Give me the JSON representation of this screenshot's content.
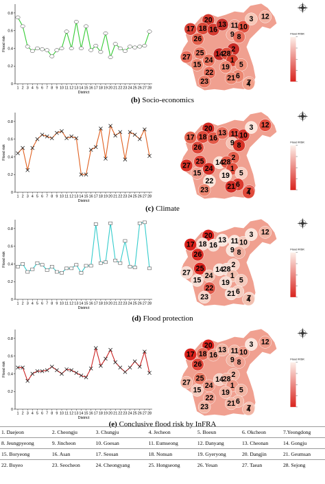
{
  "panels": [
    {
      "caption_letter": "(b)",
      "caption_text": "Socio-economics",
      "chart_color": "#33cc33",
      "marker": "circle",
      "map_top_label": "Flood RISK"
    },
    {
      "caption_letter": "(c)",
      "caption_text": "Climate",
      "chart_color": "#e06020",
      "marker": "x",
      "map_top_label": "Flood RISK"
    },
    {
      "caption_letter": "(d)",
      "caption_text": "Flood protection",
      "chart_color": "#33cccc",
      "marker": "square",
      "map_top_label": "Flood RISK"
    },
    {
      "caption_letter": "(e)",
      "caption_text": "Conclusive flood risk by InFRA",
      "chart_color": "#cc2222",
      "marker": "x",
      "map_top_label": "Flood RISK"
    }
  ],
  "chart_data": [
    {
      "type": "line",
      "xlabel": "District",
      "ylabel": "Flood risk",
      "x": [
        1,
        2,
        3,
        4,
        5,
        6,
        7,
        8,
        9,
        10,
        11,
        12,
        13,
        14,
        15,
        16,
        17,
        18,
        19,
        20,
        21,
        22,
        23,
        24,
        25,
        26,
        27,
        28
      ],
      "yticks": [
        "0",
        "0.2",
        "0.4",
        "0.6",
        "0.8"
      ],
      "ylim": [
        0,
        0.9
      ],
      "series": [
        {
          "values": [
            0.75,
            0.65,
            0.42,
            0.37,
            0.4,
            0.39,
            0.38,
            0.31,
            0.38,
            0.4,
            0.59,
            0.4,
            0.7,
            0.4,
            0.65,
            0.38,
            0.43,
            0.36,
            0.57,
            0.3,
            0.45,
            0.4,
            0.37,
            0.42,
            0.41,
            0.42,
            0.43,
            0.59
          ]
        }
      ]
    },
    {
      "type": "line",
      "xlabel": "District",
      "ylabel": "Flood risk",
      "x": [
        1,
        2,
        3,
        4,
        5,
        6,
        7,
        8,
        9,
        10,
        11,
        12,
        13,
        14,
        15,
        16,
        17,
        18,
        19,
        20,
        21,
        22,
        23,
        24,
        25,
        26,
        27,
        28
      ],
      "yticks": [
        "0",
        "0.2",
        "0.4",
        "0.6",
        "0.8"
      ],
      "ylim": [
        0,
        0.9
      ],
      "series": [
        {
          "values": [
            0.44,
            0.5,
            0.25,
            0.5,
            0.6,
            0.65,
            0.63,
            0.61,
            0.67,
            0.69,
            0.61,
            0.63,
            0.61,
            0.2,
            0.2,
            0.48,
            0.51,
            0.72,
            0.38,
            0.75,
            0.64,
            0.68,
            0.37,
            0.68,
            0.65,
            0.6,
            0.71,
            0.41
          ]
        }
      ]
    },
    {
      "type": "line",
      "xlabel": "District",
      "ylabel": "Flood risk",
      "x": [
        1,
        2,
        3,
        4,
        5,
        6,
        7,
        8,
        9,
        10,
        11,
        12,
        13,
        14,
        15,
        16,
        17,
        18,
        19,
        20,
        21,
        22,
        23,
        24,
        25,
        26,
        27,
        28
      ],
      "yticks": [
        "0",
        "0.2",
        "0.4",
        "0.6",
        "0.8"
      ],
      "ylim": [
        0,
        0.9
      ],
      "series": [
        {
          "values": [
            0.37,
            0.4,
            0.31,
            0.34,
            0.41,
            0.39,
            0.33,
            0.37,
            0.31,
            0.3,
            0.35,
            0.35,
            0.39,
            0.3,
            0.38,
            0.38,
            0.85,
            0.41,
            0.42,
            0.86,
            0.44,
            0.41,
            0.66,
            0.37,
            0.36,
            0.86,
            0.87,
            0.35
          ]
        }
      ]
    },
    {
      "type": "line",
      "xlabel": "District",
      "ylabel": "Flood risk",
      "x": [
        1,
        2,
        3,
        4,
        5,
        6,
        7,
        8,
        9,
        10,
        11,
        12,
        13,
        14,
        15,
        16,
        17,
        18,
        19,
        20,
        21,
        22,
        23,
        24,
        25,
        26,
        27,
        28
      ],
      "yticks": [
        "0",
        "0.2",
        "0.4",
        "0.6",
        "0.8"
      ],
      "ylim": [
        0,
        0.9
      ],
      "series": [
        {
          "values": [
            0.47,
            0.47,
            0.32,
            0.4,
            0.43,
            0.43,
            0.44,
            0.48,
            0.44,
            0.4,
            0.45,
            0.44,
            0.41,
            0.38,
            0.36,
            0.46,
            0.69,
            0.49,
            0.57,
            0.67,
            0.53,
            0.47,
            0.42,
            0.47,
            0.54,
            0.48,
            0.65,
            0.41
          ]
        }
      ]
    }
  ],
  "maps": [
    {
      "labels": [
        {
          "num": "20",
          "c": "#d23a2e"
        },
        {
          "num": "18",
          "c": "#dc4a3a"
        },
        {
          "num": "16",
          "c": "#d63b30"
        },
        {
          "num": "13",
          "c": "#c8302a"
        },
        {
          "num": "11",
          "c": "#f0a090"
        },
        {
          "num": "10",
          "c": "#e0503f"
        },
        {
          "num": "3",
          "c": "#f7c7b7"
        },
        {
          "num": "12",
          "c": "#f3b3a3"
        },
        {
          "num": "17",
          "c": "#d84236"
        },
        {
          "num": "26",
          "c": "#e4604c"
        },
        {
          "num": "9",
          "c": "#f3a696"
        },
        {
          "num": "8",
          "c": "#e86e5c"
        },
        {
          "num": "2",
          "c": "#c92b26"
        },
        {
          "num": "14",
          "c": "#c22622"
        },
        {
          "num": "28",
          "c": "#de4d3c"
        },
        {
          "num": "27",
          "c": "#e86e5c"
        },
        {
          "num": "25",
          "c": "#ea7a66"
        },
        {
          "num": "1",
          "c": "#d6402f"
        },
        {
          "num": "15",
          "c": "#ec8670"
        },
        {
          "num": "24",
          "c": "#e9745f"
        },
        {
          "num": "19",
          "c": "#ee8a75"
        },
        {
          "num": "5",
          "c": "#f0927c"
        },
        {
          "num": "6",
          "c": "#ec8670"
        },
        {
          "num": "22",
          "c": "#e96f5c"
        },
        {
          "num": "21",
          "c": "#ec8670"
        },
        {
          "num": "7",
          "c": "#f0927c"
        },
        {
          "num": "4",
          "c": "#f2a08a"
        },
        {
          "num": "23",
          "c": "#ea7a66"
        }
      ]
    },
    {
      "labels": [
        {
          "num": "20",
          "c": "#d32a22"
        },
        {
          "num": "18",
          "c": "#e04a3a"
        },
        {
          "num": "16",
          "c": "#e35a48"
        },
        {
          "num": "13",
          "c": "#e86e5c"
        },
        {
          "num": "11",
          "c": "#dd4334"
        },
        {
          "num": "10",
          "c": "#d5342a"
        },
        {
          "num": "3",
          "c": "#fde6dc"
        },
        {
          "num": "12",
          "c": "#e44c3c"
        },
        {
          "num": "17",
          "c": "#e56550"
        },
        {
          "num": "26",
          "c": "#dc4638"
        },
        {
          "num": "9",
          "c": "#f6c3b5"
        },
        {
          "num": "8",
          "c": "#d73327"
        },
        {
          "num": "2",
          "c": "#e45f4c"
        },
        {
          "num": "14",
          "c": "#fbe3d8"
        },
        {
          "num": "28",
          "c": "#e55a48"
        },
        {
          "num": "27",
          "c": "#d83025"
        },
        {
          "num": "25",
          "c": "#e04438"
        },
        {
          "num": "1",
          "c": "#e1503f"
        },
        {
          "num": "15",
          "c": "#f0a090"
        },
        {
          "num": "24",
          "c": "#d32c24"
        },
        {
          "num": "19",
          "c": "#fbe0d6"
        },
        {
          "num": "5",
          "c": "#f8d0c4"
        },
        {
          "num": "6",
          "c": "#db3a2e"
        },
        {
          "num": "22",
          "c": "#fbe5da"
        },
        {
          "num": "21",
          "c": "#d32c24"
        },
        {
          "num": "7",
          "c": "#da3a2e"
        },
        {
          "num": "4",
          "c": "#e04a3a"
        },
        {
          "num": "23",
          "c": "#ec8670"
        }
      ]
    },
    {
      "labels": [
        {
          "num": "20",
          "c": "#d9231d"
        },
        {
          "num": "18",
          "c": "#f7ddd4"
        },
        {
          "num": "16",
          "c": "#f7ddd4"
        },
        {
          "num": "13",
          "c": "#fbe8e0"
        },
        {
          "num": "11",
          "c": "#fbe5dc"
        },
        {
          "num": "10",
          "c": "#f5cabd"
        },
        {
          "num": "3",
          "c": "#fbe5dc"
        },
        {
          "num": "12",
          "c": "#f2b5a4"
        },
        {
          "num": "17",
          "c": "#d9231d"
        },
        {
          "num": "26",
          "c": "#da2b23"
        },
        {
          "num": "9",
          "c": "#fbe5dc"
        },
        {
          "num": "8",
          "c": "#f0b0a0"
        },
        {
          "num": "2",
          "c": "#f7d5ca"
        },
        {
          "num": "14",
          "c": "#fbe5dc"
        },
        {
          "num": "28",
          "c": "#f7ddd4"
        },
        {
          "num": "27",
          "c": "#f7ddd4"
        },
        {
          "num": "25",
          "c": "#d9231d"
        },
        {
          "num": "1",
          "c": "#f2c0b0"
        },
        {
          "num": "15",
          "c": "#f7ddd4"
        },
        {
          "num": "24",
          "c": "#f2c3b3"
        },
        {
          "num": "19",
          "c": "#f7ddd4"
        },
        {
          "num": "5",
          "c": "#f5cabd"
        },
        {
          "num": "6",
          "c": "#f5cdc0"
        },
        {
          "num": "22",
          "c": "#e0584a"
        },
        {
          "num": "21",
          "c": "#f7ddd4"
        },
        {
          "num": "7",
          "c": "#f7d0c4"
        },
        {
          "num": "4",
          "c": "#f2c0b0"
        },
        {
          "num": "23",
          "c": "#f7d5ca"
        }
      ]
    },
    {
      "labels": [
        {
          "num": "20",
          "c": "#d9231d"
        },
        {
          "num": "18",
          "c": "#e56b58"
        },
        {
          "num": "16",
          "c": "#ee9a88"
        },
        {
          "num": "13",
          "c": "#f2b5a4"
        },
        {
          "num": "11",
          "c": "#f2b5a4"
        },
        {
          "num": "10",
          "c": "#ee9a88"
        },
        {
          "num": "3",
          "c": "#fbe5dc"
        },
        {
          "num": "12",
          "c": "#ee9a88"
        },
        {
          "num": "17",
          "c": "#d9231d"
        },
        {
          "num": "26",
          "c": "#e04438"
        },
        {
          "num": "9",
          "c": "#f2b5a4"
        },
        {
          "num": "8",
          "c": "#f0a090"
        },
        {
          "num": "2",
          "c": "#f2b5a4"
        },
        {
          "num": "14",
          "c": "#f7d0c4"
        },
        {
          "num": "28",
          "c": "#f2b5a4"
        },
        {
          "num": "27",
          "c": "#f2b5a4"
        },
        {
          "num": "25",
          "c": "#ea7c66"
        },
        {
          "num": "1",
          "c": "#ee9a88"
        },
        {
          "num": "15",
          "c": "#f5cabd"
        },
        {
          "num": "24",
          "c": "#ee9a88"
        },
        {
          "num": "19",
          "c": "#f2b5a4"
        },
        {
          "num": "5",
          "c": "#f2b5a4"
        },
        {
          "num": "6",
          "c": "#f2b5a4"
        },
        {
          "num": "22",
          "c": "#f0a090"
        },
        {
          "num": "21",
          "c": "#f2b5a4"
        },
        {
          "num": "7",
          "c": "#f2b5a4"
        },
        {
          "num": "4",
          "c": "#f2b5a4"
        },
        {
          "num": "23",
          "c": "#f2b5a4"
        }
      ]
    }
  ],
  "legend": {
    "title": "Flood RISK"
  },
  "districts": [
    [
      "1. Daejeon",
      "2. Cheongju",
      "3. Chungju",
      "4. Jecheon",
      "5. Boeun",
      "6. Okcheon",
      "7.Yeongdong"
    ],
    [
      "8. Jeungpyeong",
      "9. Jincheon",
      "10. Goesan",
      "11. Eumseong",
      "12. Danyang",
      "13. Cheonan",
      "14. Gongju"
    ],
    [
      "15. Boryeong",
      "16. Asan",
      "17. Seosan",
      "18. Nonsan",
      "19. Gyeryong",
      "20. Dangjin",
      "21. Geumsan"
    ],
    [
      "22. Buyeo",
      "23. Seocheon",
      "24. Cheongyang",
      "25. Hongseong",
      "26. Yesan",
      "27. Taean",
      "28. Sejong"
    ]
  ]
}
